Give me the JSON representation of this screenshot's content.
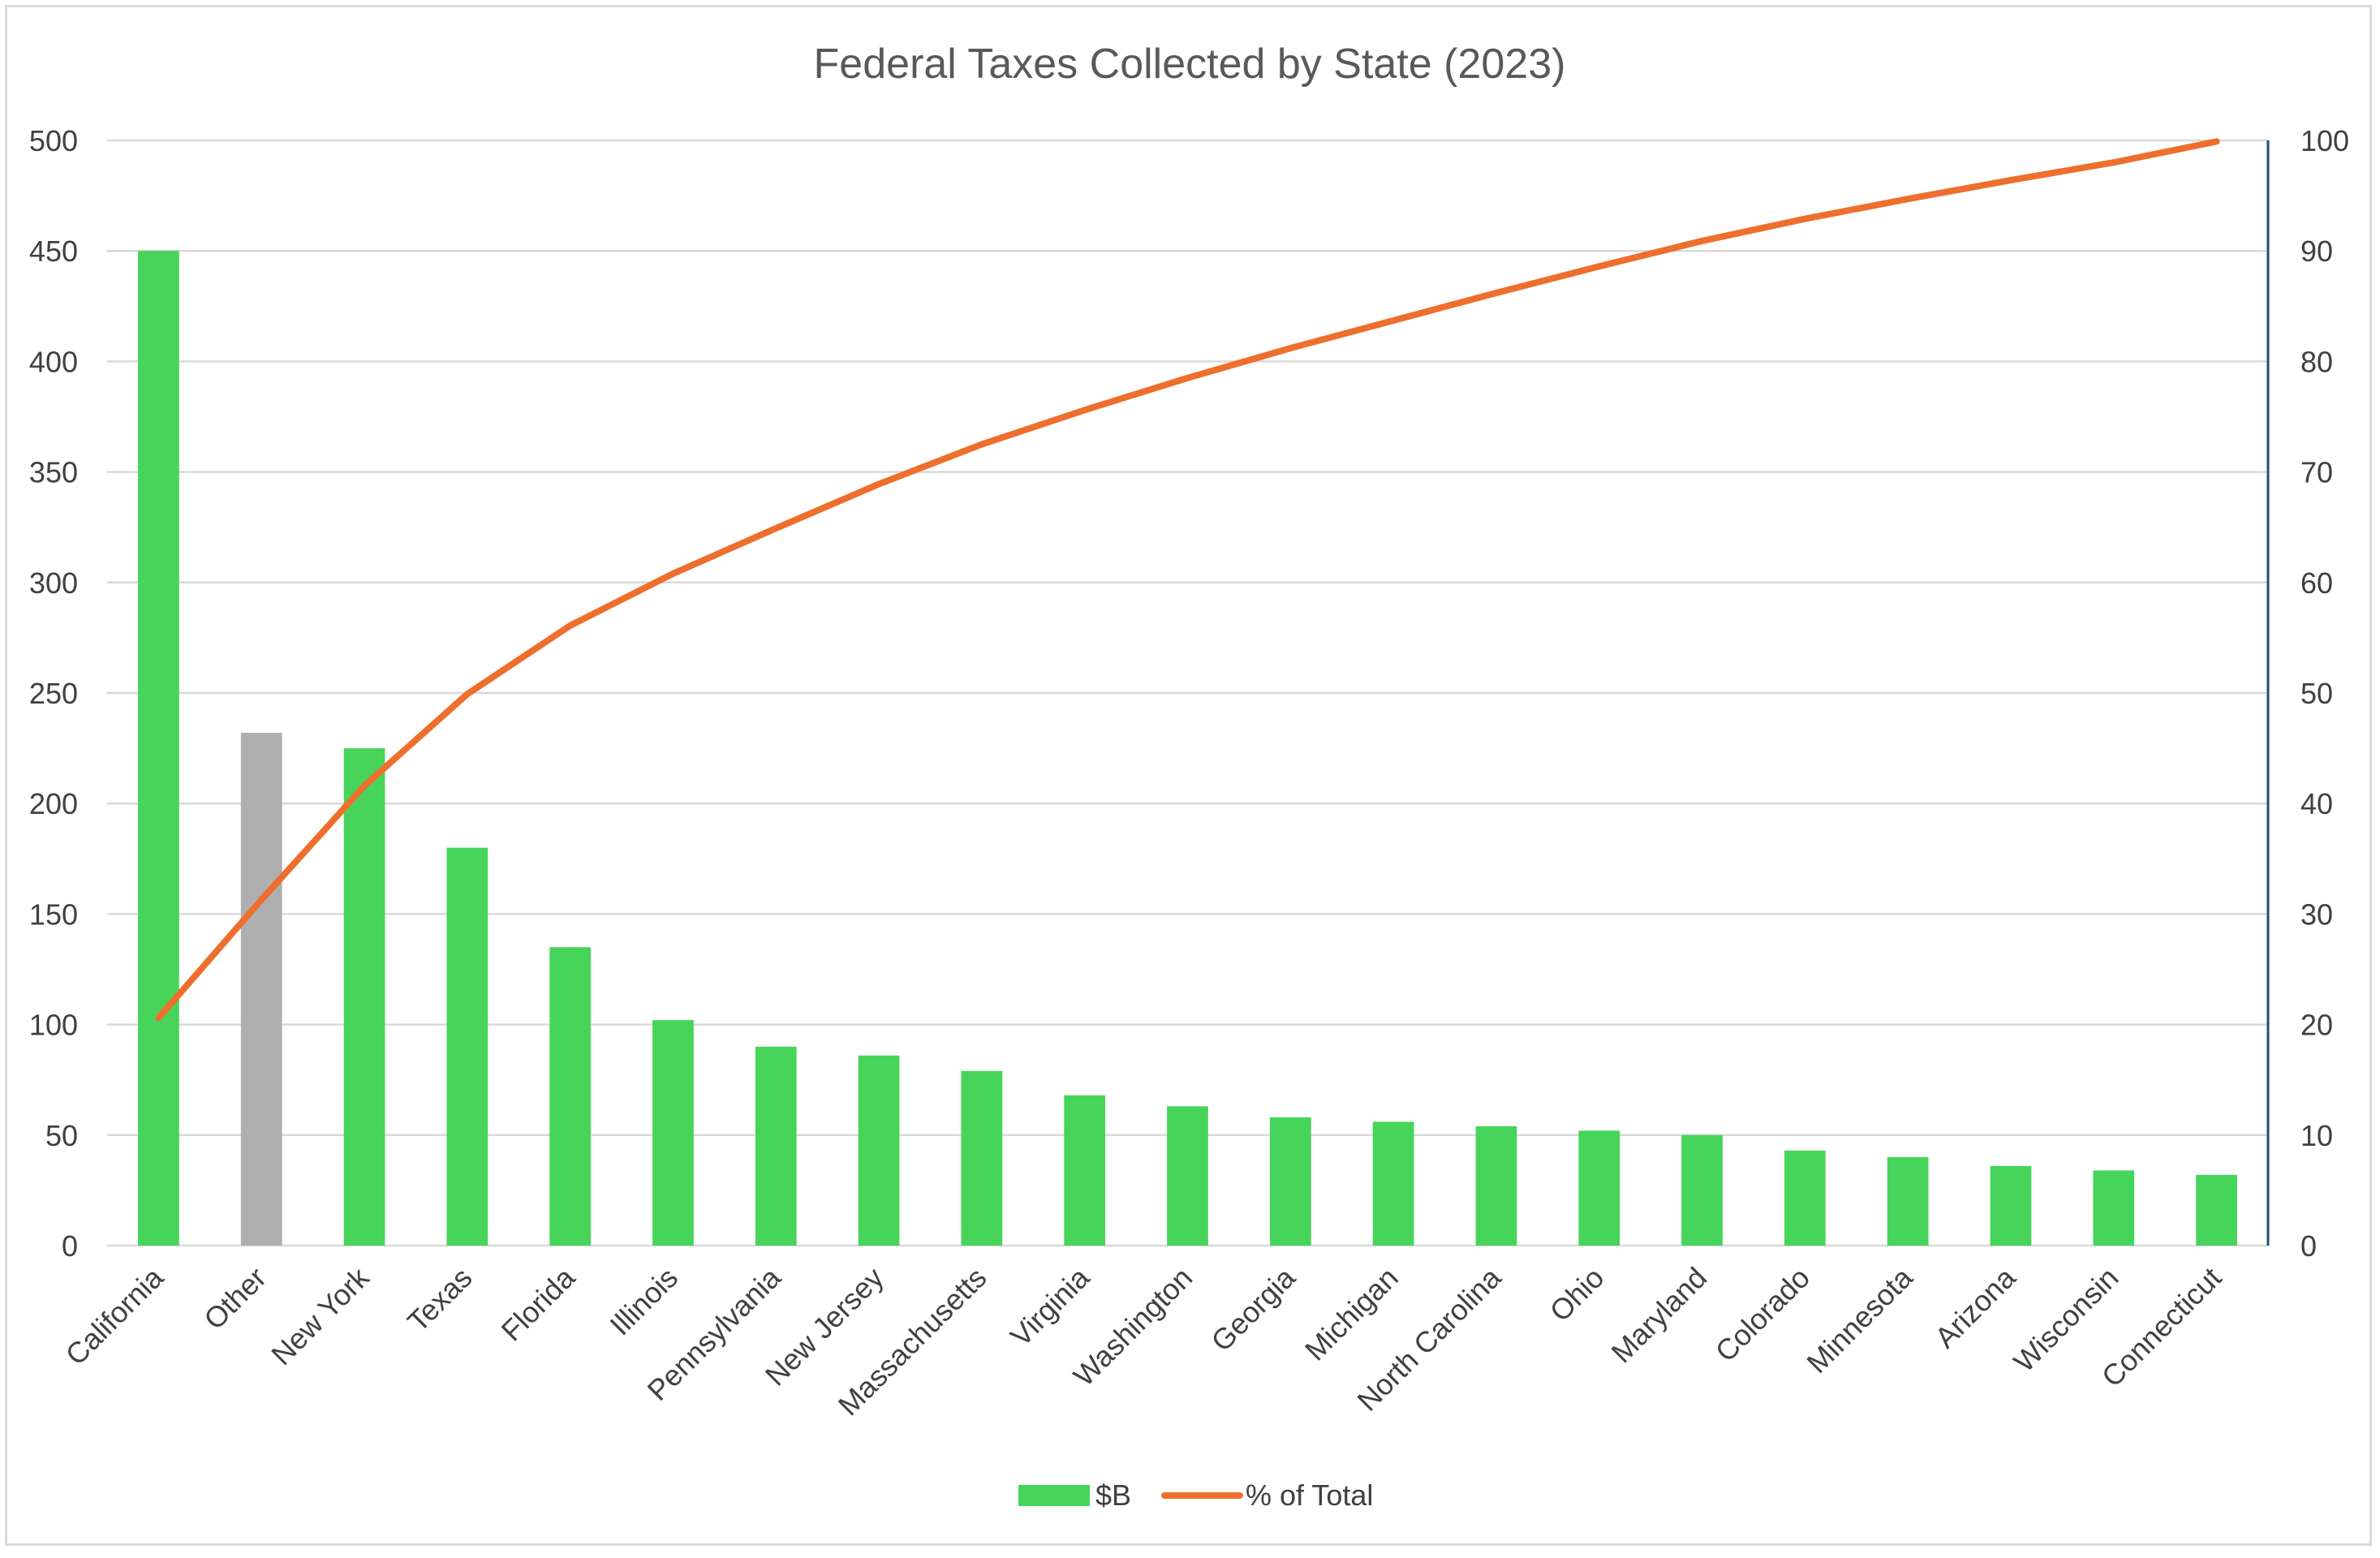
{
  "chart_data": {
    "type": "bar",
    "title": "Federal Taxes Collected by State (2023)",
    "categories": [
      "California",
      "Other",
      "New York",
      "Texas",
      "Florida",
      "Illinois",
      "Pennsylvania",
      "New Jersey",
      "Massachusetts",
      "Virginia",
      "Washington",
      "Georgia",
      "Michigan",
      "North Carolina",
      "Ohio",
      "Maryland",
      "Colorado",
      "Minnesota",
      "Arizona",
      "Wisconsin",
      "Connecticut"
    ],
    "series": [
      {
        "name": "$B",
        "type": "bar",
        "axis": "left",
        "values": [
          450,
          232,
          225,
          180,
          135,
          102,
          90,
          86,
          79,
          68,
          63,
          58,
          56,
          54,
          52,
          50,
          43,
          40,
          36,
          34,
          32
        ]
      },
      {
        "name": "% of Total",
        "type": "line",
        "axis": "right",
        "values": [
          20.6,
          31.3,
          41.6,
          49.9,
          56.1,
          60.8,
          64.9,
          68.9,
          72.5,
          75.6,
          78.5,
          81.2,
          83.7,
          86.2,
          88.6,
          90.9,
          92.9,
          94.7,
          96.4,
          98.0,
          99.9
        ]
      }
    ],
    "y_left": {
      "min": 0,
      "max": 500,
      "ticks": [
        "0",
        "50",
        "100",
        "150",
        "200",
        "250",
        "300",
        "350",
        "400",
        "450",
        "500"
      ]
    },
    "y_right": {
      "min": 0,
      "max": 100,
      "ticks": [
        "0",
        "10",
        "20",
        "30",
        "40",
        "50",
        "60",
        "70",
        "80",
        "90",
        "100"
      ]
    },
    "xlabel": "",
    "ylabel": "",
    "grid": true,
    "legend": "bottom",
    "colors": {
      "bar": "#47d45a",
      "bar_highlight": "#afafaf",
      "highlight_category": "Other",
      "line": "#ee6f2d",
      "gridline": "#d9d9d9",
      "right_axis": "#1f4e79"
    }
  }
}
